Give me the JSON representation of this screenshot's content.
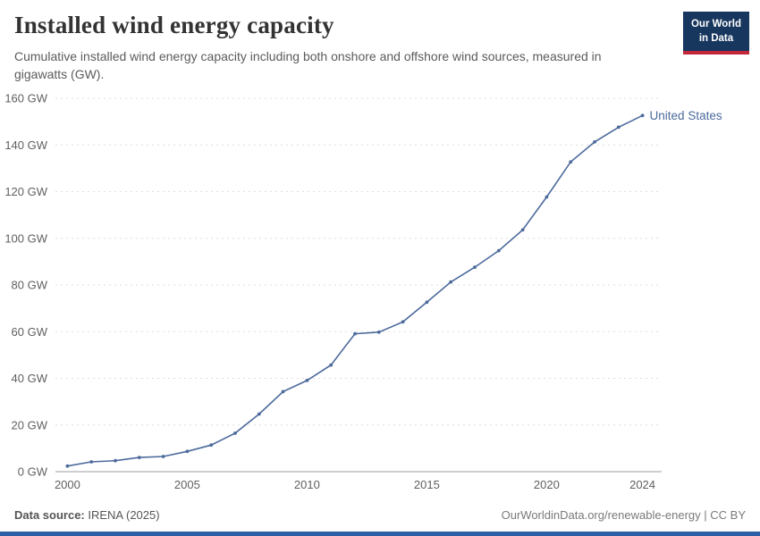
{
  "header": {
    "title": "Installed wind energy capacity",
    "subtitle": "Cumulative installed wind energy capacity including both onshore and offshore wind sources, measured in gigawatts (GW).",
    "logo": {
      "line1": "Our World",
      "line2": "in Data"
    }
  },
  "footer": {
    "source_label": "Data source:",
    "source_value": "IRENA (2025)",
    "right_text": "OurWorldinData.org/renewable-energy | CC BY"
  },
  "colors": {
    "series_blue": "#4C6A9C",
    "logo_bg": "#18375F",
    "logo_red": "#C4273A",
    "bottom_bar_blue": "#2C60A5",
    "gridline": "#dedede",
    "axis_line": "#9e9e9e",
    "tick_label": "#606060"
  },
  "chart_data": {
    "type": "line",
    "title": "Installed wind energy capacity",
    "xlabel": "",
    "ylabel": "",
    "xlim": [
      1999.5,
      2024.8
    ],
    "ylim": [
      0,
      160
    ],
    "x_ticks": [
      2000,
      2005,
      2010,
      2015,
      2020,
      2024
    ],
    "y_ticks": [
      0,
      20,
      40,
      60,
      80,
      100,
      120,
      140,
      160
    ],
    "y_tick_suffix": " GW",
    "grid": "horizontal-dashed",
    "legend_position": "end-of-line",
    "series": [
      {
        "name": "United States",
        "color": "#4C6A9C",
        "x": [
          2000,
          2001,
          2002,
          2003,
          2004,
          2005,
          2006,
          2007,
          2008,
          2009,
          2010,
          2011,
          2012,
          2013,
          2014,
          2015,
          2016,
          2017,
          2018,
          2019,
          2020,
          2021,
          2022,
          2023,
          2024
        ],
        "values": [
          2.4,
          4.2,
          4.7,
          6.1,
          6.5,
          8.7,
          11.4,
          16.5,
          24.7,
          34.3,
          39.1,
          45.7,
          59.1,
          59.8,
          64.2,
          72.6,
          81.3,
          87.6,
          94.7,
          103.6,
          117.7,
          132.7,
          141.3,
          147.6,
          152.6
        ]
      }
    ]
  }
}
